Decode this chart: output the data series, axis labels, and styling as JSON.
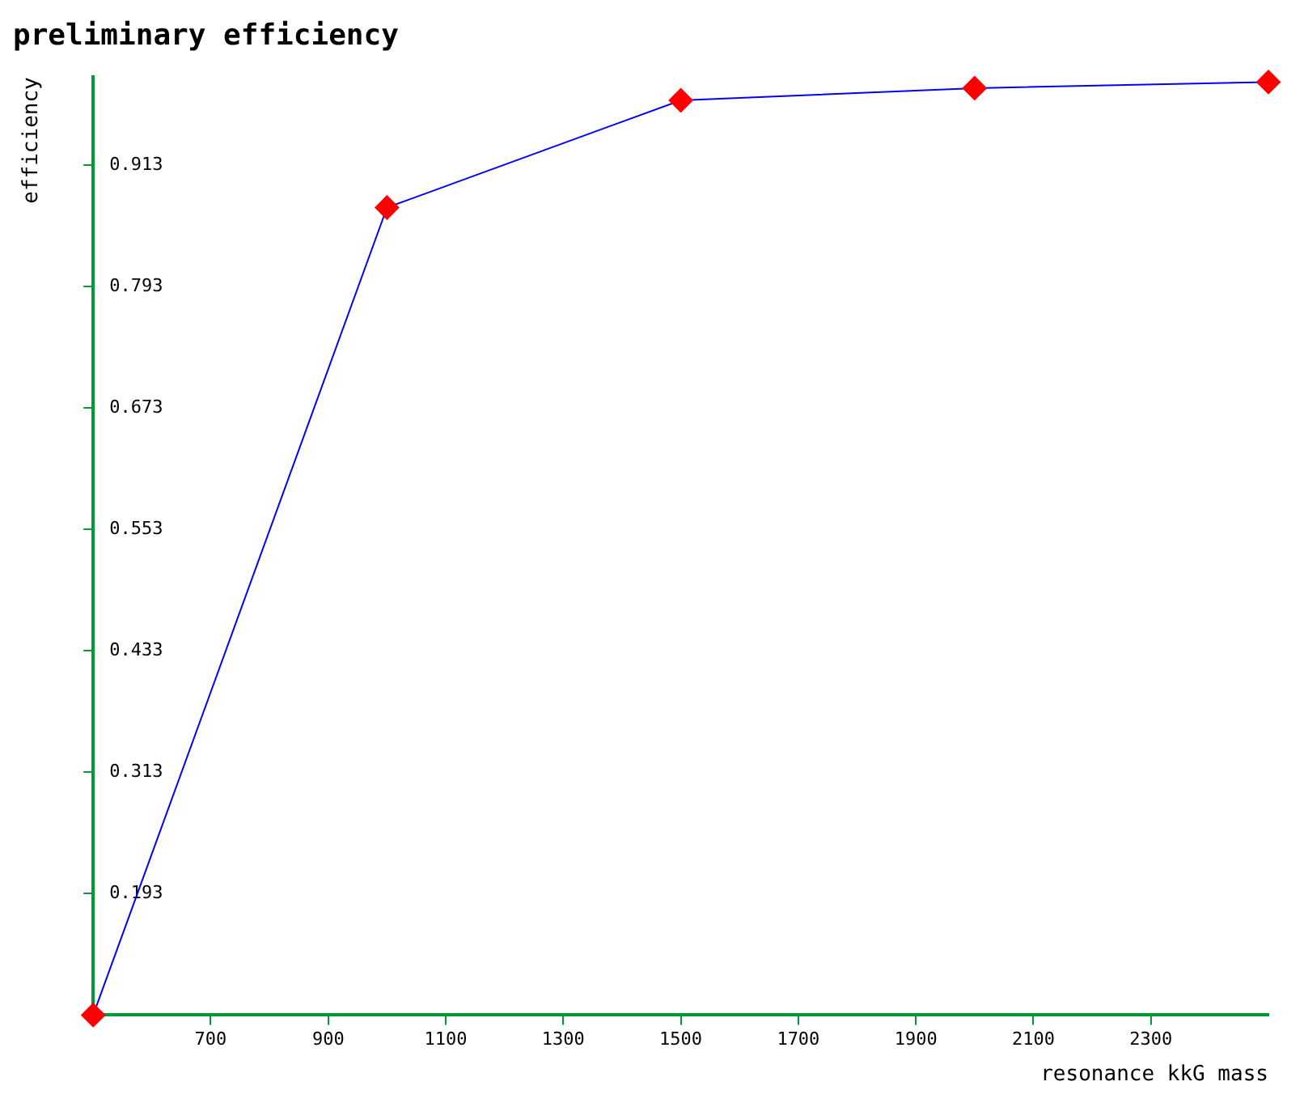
{
  "chart_data": {
    "type": "line",
    "title": "preliminary efficiency",
    "xlabel": "resonance kkG mass",
    "ylabel": "efficiency",
    "x": [
      500,
      1000,
      1500,
      2000,
      2500
    ],
    "series": [
      {
        "color": "#0000ff",
        "values": [
          0.073,
          0.871,
          0.977,
          0.989,
          0.995
        ]
      }
    ],
    "xlim": [
      500,
      2500
    ],
    "xticks": [
      700,
      900,
      1100,
      1300,
      1500,
      1700,
      1900,
      2100,
      2300
    ],
    "ylim": [
      0.073,
      1.0
    ],
    "yticks": [
      0.193,
      0.313,
      0.433,
      0.553,
      0.673,
      0.793,
      0.913
    ],
    "marker": "diamond",
    "grid": false,
    "legend": false
  }
}
